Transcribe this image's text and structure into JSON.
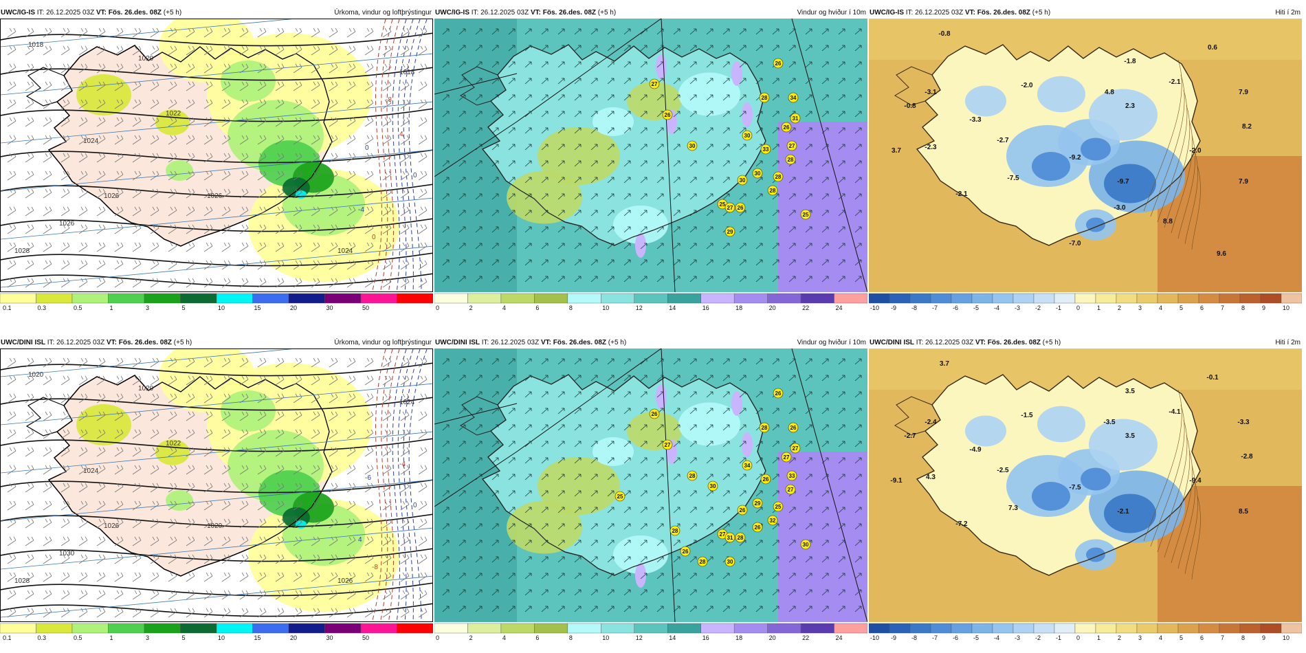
{
  "row_top": {
    "model": "UWC/IG-IS",
    "precip": {
      "model": "UWC/IG-IS",
      "it_label": "IT:",
      "it_value": "26.12.2025 03Z",
      "vt_label": "VT:",
      "vt_value": "Fös. 26.des. 08Z",
      "lead": "(+5 h)",
      "title": "Úrkoma, vindur og loftþrýstingur",
      "isobars": [
        "1018",
        "1020",
        "1022",
        "1024",
        "1026",
        "1028",
        "1026",
        "1024",
        "1018",
        "1026"
      ],
      "temp_labels": [
        "0",
        "4",
        "0",
        "0",
        "-4",
        "-8"
      ]
    },
    "wind": {
      "model": "UWC/IG-IS",
      "it_label": "IT:",
      "it_value": "26.12.2025 03Z",
      "vt_label": "VT:",
      "vt_value": "Fös. 26.des. 08Z",
      "lead": "(+5 h)",
      "title": "Vindur og hviður í 10m",
      "gusts": [
        "26",
        "27",
        "26",
        "28",
        "34",
        "31",
        "30",
        "30",
        "26",
        "27",
        "33",
        "30",
        "28",
        "28",
        "30",
        "28",
        "26",
        "25",
        "27",
        "29",
        "25"
      ]
    },
    "temp": {
      "model": "UWC/IG-IS",
      "it_label": "IT:",
      "it_value": "26.12.2025 03Z",
      "vt_label": "VT:",
      "vt_value": "Fös. 26.des. 08Z",
      "lead": "(+5 h)",
      "title": "Hiti í 2m",
      "values": [
        "-0.8",
        "0.6",
        "-1.8",
        "-2.1",
        "-3.1",
        "-2.0",
        "4.8",
        "-0.8",
        "2.3",
        "7.9",
        "-3.3",
        "8.2",
        "-2.7",
        "-2.3",
        "3.7",
        "-9.2",
        "-2.0",
        "-7.5",
        "-9.7",
        "7.9",
        "-2.1",
        "-3.0",
        "8.8",
        "-7.0",
        "9.6"
      ]
    }
  },
  "row_bottom": {
    "model": "UWC/DINI ISL",
    "precip": {
      "model": "UWC/DINI ISL",
      "it_label": "IT:",
      "it_value": "26.12.2025 03Z",
      "vt_label": "VT:",
      "vt_value": "Fös. 26.des. 08Z",
      "lead": "(+5 h)",
      "title": "Úrkoma, vindur og loftþrýstingur",
      "isobars": [
        "1020",
        "1020",
        "1022",
        "1024",
        "1026",
        "1028",
        "1030",
        "1026",
        "1024",
        "1020"
      ],
      "temp_labels": [
        "-6",
        "-4",
        "0",
        "-8",
        "4"
      ]
    },
    "wind": {
      "model": "UWC/DINI ISL",
      "it_label": "IT:",
      "it_value": "26.12.2025 03Z",
      "vt_label": "VT:",
      "vt_value": "Fös. 26.des. 08Z",
      "lead": "(+5 h)",
      "title": "Vindur og hviður í 10m",
      "gusts": [
        "26",
        "26",
        "27",
        "28",
        "26",
        "27",
        "28",
        "34",
        "27",
        "33",
        "26",
        "29",
        "25",
        "27",
        "26",
        "32",
        "28",
        "27",
        "31",
        "30",
        "30",
        "25",
        "28",
        "26",
        "30",
        "26",
        "28"
      ]
    },
    "temp": {
      "model": "UWC/DINI ISL",
      "it_label": "IT:",
      "it_value": "26.12.2025 03Z",
      "vt_label": "VT:",
      "vt_value": "Fös. 26.des. 08Z",
      "lead": "(+5 h)",
      "title": "Hiti í 2m",
      "values": [
        "3.7",
        "-0.1",
        "3.5",
        "-4.1",
        "-2.4",
        "-1.5",
        "-3.5",
        "-2.7",
        "3.5",
        "-3.3",
        "-4.9",
        "-2.8",
        "-2.5",
        "4.3",
        "-9.1",
        "-7.5",
        "-9.4",
        "7.3",
        "-2.1",
        "8.5",
        "-7.2"
      ]
    }
  },
  "legends": {
    "precip": {
      "labels": [
        "0.1",
        "0.3",
        "0.5",
        "1",
        "3",
        "5",
        "10",
        "15",
        "20",
        "30",
        "50"
      ],
      "colors": [
        "#ffff99",
        "#d9e83a",
        "#aef27a",
        "#4fd04f",
        "#1aa31a",
        "#0b6b32",
        "#00f5f5",
        "#3c6cf0",
        "#121c8c",
        "#7a0077",
        "#ff1493",
        "#ff0000"
      ]
    },
    "wind": {
      "labels": [
        "0",
        "2",
        "4",
        "6",
        "8",
        "10",
        "12",
        "14",
        "16",
        "18",
        "20",
        "22",
        "24"
      ],
      "colors": [
        "#fbffe0",
        "#dbef9e",
        "#bcd968",
        "#a3c04a",
        "#b4fafa",
        "#8ae3df",
        "#5cc3bd",
        "#3aa29c",
        "#c9b4ff",
        "#a58cf0",
        "#8566d6",
        "#5b3bb0",
        "#ffa0a0"
      ]
    },
    "temp": {
      "labels": [
        "-10",
        "-9",
        "-8",
        "-7",
        "-6",
        "-5",
        "-4",
        "-3",
        "-2",
        "-1",
        "0",
        "1",
        "2",
        "3",
        "4",
        "5",
        "6",
        "7",
        "8",
        "9",
        "10"
      ],
      "colors": [
        "#1e4fa3",
        "#2a62b8",
        "#3b78c8",
        "#4f8cd6",
        "#65a1e0",
        "#7cb4e8",
        "#95c4ee",
        "#aed2f2",
        "#c7e0f5",
        "#e0eef7",
        "#fbf6bd",
        "#f7ec9a",
        "#f1de82",
        "#eacb6c",
        "#e2b85c",
        "#dba24e",
        "#d38c42",
        "#c87637",
        "#bb612e",
        "#ad4d25",
        "#f0c3a0"
      ]
    }
  }
}
